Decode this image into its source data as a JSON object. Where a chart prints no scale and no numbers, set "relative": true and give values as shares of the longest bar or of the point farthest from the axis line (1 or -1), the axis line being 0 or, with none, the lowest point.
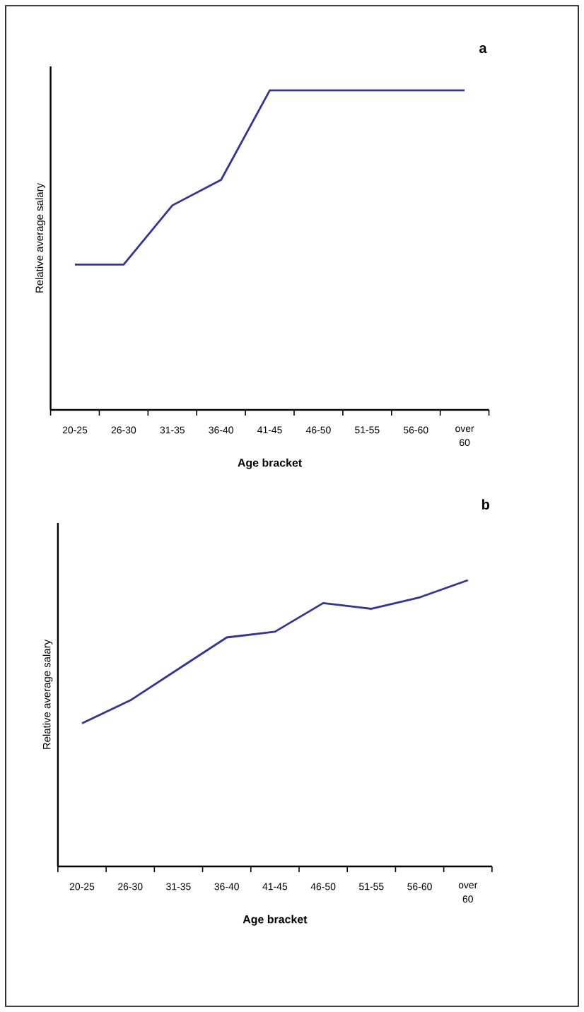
{
  "chart_data": [
    {
      "type": "line",
      "title": "a",
      "xlabel": "Age bracket",
      "ylabel": "Relative average salary",
      "relative": true,
      "color": "#333399",
      "categories": [
        "20-25",
        "26-30",
        "31-35",
        "36-40",
        "41-45",
        "46-50",
        "51-55",
        "56-60",
        "over 60"
      ],
      "values": [
        0.455,
        0.455,
        0.64,
        0.72,
        1,
        1,
        1,
        1,
        1
      ]
    },
    {
      "type": "line",
      "title": "b",
      "xlabel": "Age bracket",
      "ylabel": "Relative average salary",
      "relative": true,
      "color": "#333399",
      "categories": [
        "20-25",
        "26-30",
        "31-35",
        "36-40",
        "41-45",
        "46-50",
        "51-55",
        "56-60",
        "over 60"
      ],
      "values": [
        0.5,
        0.58,
        0.69,
        0.8,
        0.82,
        0.92,
        0.9,
        0.94,
        1
      ]
    }
  ]
}
